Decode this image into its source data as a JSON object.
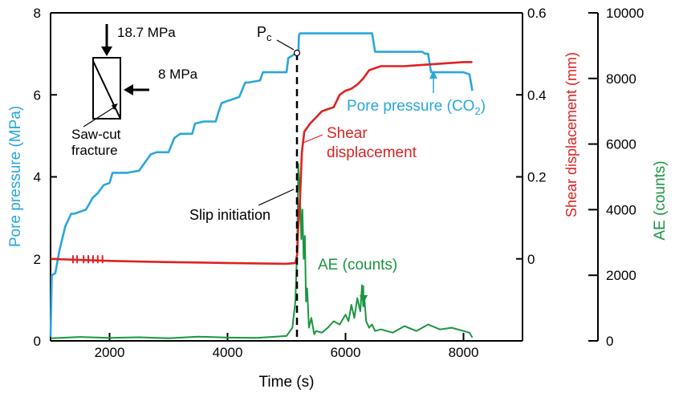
{
  "chart_data": {
    "type": "line",
    "xlabel": "Time (s)",
    "xlim": [
      1000,
      9000
    ],
    "x_ticks": [
      2000,
      4000,
      6000,
      8000
    ],
    "x_tick_labels": [
      "2000",
      "4000",
      "6000",
      "8000"
    ],
    "axes": {
      "pore": {
        "label": "Pore pressure (MPa)",
        "lim": [
          0,
          8
        ],
        "ticks": [
          "0",
          "2",
          "4",
          "6",
          "8"
        ],
        "color": "#29a6dd"
      },
      "shear": {
        "label": "Shear displacement (mm)",
        "lim": [
          -0.2,
          0.6
        ],
        "ticks": [
          "0",
          "0.2",
          "0.4",
          "0.6"
        ],
        "color": "#dd2222"
      },
      "ae": {
        "label": "AE (counts)",
        "lim": [
          0,
          10000
        ],
        "ticks": [
          "0",
          "2000",
          "4000",
          "6000",
          "8000",
          "10000"
        ],
        "color": "#1a9641"
      }
    },
    "series": [
      {
        "name": "Pore pressure (CO2)",
        "axis": "pore",
        "color": "#29a6dd",
        "x": [
          1000,
          1020,
          1080,
          1150,
          1250,
          1350,
          1400,
          1500,
          1600,
          1700,
          1720,
          1800,
          1900,
          2000,
          2050,
          2100,
          2300,
          2500,
          2700,
          2800,
          2850,
          3000,
          3100,
          3200,
          3300,
          3400,
          3450,
          3600,
          3800,
          3850,
          3900,
          4000,
          4100,
          4200,
          4300,
          4350,
          4550,
          4600,
          4900,
          5000,
          5030,
          5150,
          5200,
          5210,
          5230,
          5400,
          5600,
          6000,
          6450,
          6500,
          6600,
          7300,
          7350,
          7400,
          7450,
          7500,
          7550,
          8000,
          8100,
          8150
        ],
        "y": [
          0.1,
          1.6,
          1.65,
          2.2,
          2.8,
          3.1,
          3.1,
          3.15,
          3.2,
          3.45,
          3.5,
          3.6,
          3.8,
          3.85,
          4.1,
          4.1,
          4.1,
          4.15,
          4.55,
          4.6,
          4.6,
          4.6,
          4.95,
          5.05,
          5.05,
          5.05,
          5.3,
          5.35,
          5.35,
          5.6,
          5.8,
          5.85,
          5.9,
          5.95,
          6.3,
          6.3,
          6.35,
          6.55,
          6.55,
          6.55,
          6.9,
          7.0,
          7.0,
          7.45,
          7.5,
          7.5,
          7.5,
          7.5,
          7.5,
          7.05,
          7.05,
          7.05,
          7.0,
          7.0,
          6.55,
          6.55,
          6.55,
          6.55,
          6.5,
          6.1
        ]
      },
      {
        "name": "Shear displacement",
        "axis": "shear",
        "color": "#dd2222",
        "x": [
          1000,
          2000,
          3000,
          4000,
          5000,
          5150,
          5180,
          5200,
          5230,
          5260,
          5300,
          5400,
          5500,
          5600,
          5700,
          5800,
          5900,
          6000,
          6100,
          6200,
          6300,
          6400,
          6500,
          6600,
          7000,
          7500,
          8000,
          8150
        ],
        "y": [
          0.0,
          -0.005,
          -0.008,
          -0.01,
          -0.012,
          -0.01,
          0.01,
          0.08,
          0.15,
          0.26,
          0.31,
          0.33,
          0.345,
          0.36,
          0.365,
          0.37,
          0.4,
          0.41,
          0.415,
          0.425,
          0.44,
          0.46,
          0.465,
          0.47,
          0.47,
          0.475,
          0.48,
          0.48
        ]
      },
      {
        "name": "AE (counts)",
        "axis": "ae",
        "color": "#1a9641",
        "x": [
          1000,
          1500,
          2000,
          2500,
          3000,
          3500,
          4000,
          4500,
          5000,
          5100,
          5150,
          5180,
          5200,
          5210,
          5230,
          5250,
          5270,
          5290,
          5310,
          5330,
          5350,
          5380,
          5420,
          5470,
          5500,
          5600,
          5700,
          5800,
          5900,
          6000,
          6050,
          6100,
          6150,
          6200,
          6250,
          6280,
          6300,
          6320,
          6350,
          6400,
          6450,
          6500,
          6600,
          6800,
          7000,
          7200,
          7400,
          7600,
          7800,
          8000,
          8100,
          8150
        ],
        "y": [
          80,
          120,
          90,
          110,
          80,
          130,
          100,
          90,
          150,
          400,
          1200,
          2800,
          5400,
          5000,
          4400,
          3100,
          4000,
          2500,
          3200,
          1200,
          1600,
          400,
          700,
          200,
          300,
          250,
          400,
          600,
          500,
          800,
          600,
          1100,
          700,
          1300,
          900,
          1700,
          1050,
          1300,
          600,
          400,
          500,
          300,
          350,
          250,
          450,
          300,
          500,
          350,
          400,
          300,
          250,
          100
        ]
      }
    ],
    "annotations": [
      {
        "text": "18.7 MPa"
      },
      {
        "text": "8 MPa"
      },
      {
        "text": "Saw-cut"
      },
      {
        "text": "fracture"
      },
      {
        "text": "P",
        "sub": "c"
      },
      {
        "text": "Shear"
      },
      {
        "text": "displacement"
      },
      {
        "text": "Slip initiation"
      },
      {
        "text": "AE (counts)"
      },
      {
        "text": "Pore pressure (CO",
        "sub": "2",
        "tail": ")"
      }
    ]
  }
}
